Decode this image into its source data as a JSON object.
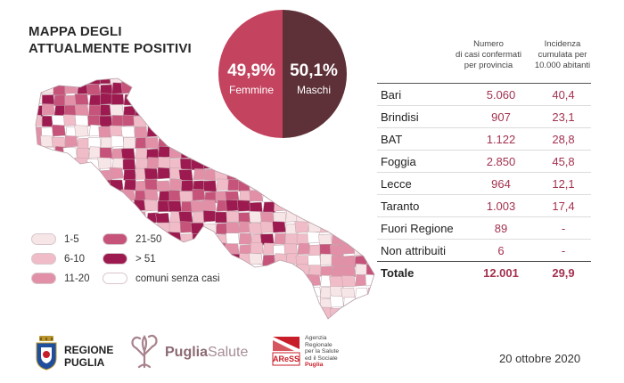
{
  "title": {
    "line1": "MAPPA DEGLI",
    "line2": "ATTUALMENTE POSITIVI"
  },
  "gender": {
    "female": {
      "value": "49,9%",
      "label": "Femmine",
      "color": "#c4435f"
    },
    "male": {
      "value": "50,1%",
      "label": "Maschi",
      "color": "#5e3038"
    }
  },
  "table": {
    "header1": [
      "Numero",
      "di casi confermati",
      "per provincia"
    ],
    "header2": [
      "Incidenza",
      "cumulata per",
      "10.000 abitanti"
    ],
    "rows": [
      {
        "province": "Bari",
        "cases": "5.060",
        "incidence": "40,4"
      },
      {
        "province": "Brindisi",
        "cases": "907",
        "incidence": "23,1"
      },
      {
        "province": "BAT",
        "cases": "1.122",
        "incidence": "28,8"
      },
      {
        "province": "Foggia",
        "cases": "2.850",
        "incidence": "45,8"
      },
      {
        "province": "Lecce",
        "cases": "964",
        "incidence": "12,1"
      },
      {
        "province": "Taranto",
        "cases": "1.003",
        "incidence": "17,4"
      },
      {
        "province": "Fuori Regione",
        "cases": "89",
        "incidence": "-"
      },
      {
        "province": "Non attribuiti",
        "cases": "6",
        "incidence": "-"
      }
    ],
    "total": {
      "label": "Totale",
      "cases": "12.001",
      "incidence": "29,9"
    }
  },
  "legend": [
    {
      "label": "1-5",
      "color": "#f7e6e8"
    },
    {
      "label": "6-10",
      "color": "#f0bcc8"
    },
    {
      "label": "11-20",
      "color": "#e190a8"
    },
    {
      "label": "21-50",
      "color": "#c5537a"
    },
    {
      "label": "> 51",
      "color": "#9c1a4f"
    },
    {
      "label": "comuni senza casi",
      "color": "#ffffff"
    }
  ],
  "logos": {
    "region": {
      "line1": "REGIONE",
      "line2": "PUGLIA"
    },
    "puglia_salute": {
      "part1": "Puglia",
      "part2": "Salute"
    },
    "aress": {
      "short": "AReSS",
      "lines": [
        "Agenzia",
        "Regionale",
        "per la Salute",
        "ed il Sociale"
      ],
      "sub": "Puglia"
    }
  },
  "date": "20 ottobre 2020"
}
